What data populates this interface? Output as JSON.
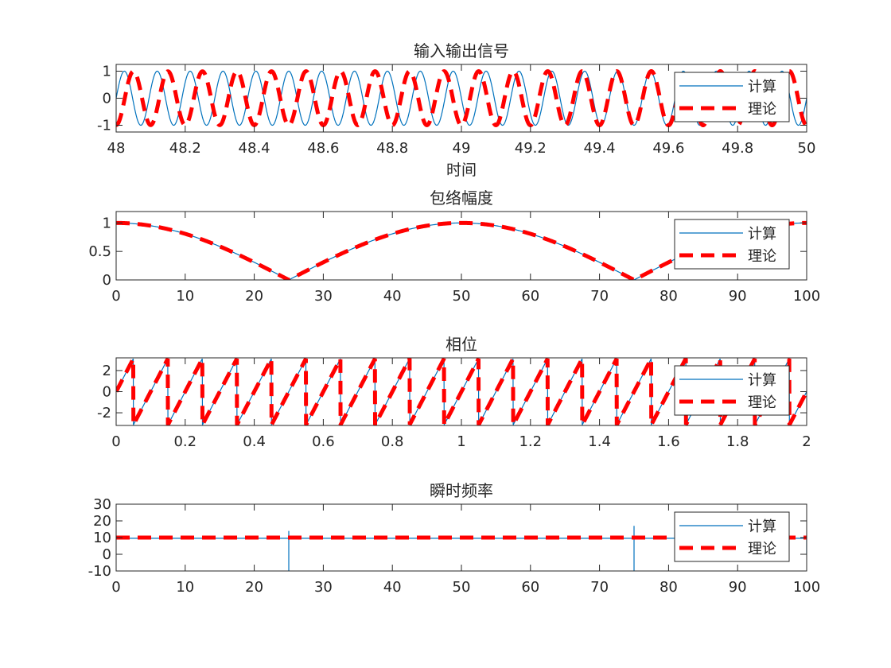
{
  "chart_data": [
    {
      "type": "line",
      "title": "输入输出信号",
      "xlabel": "时间",
      "ylabel": "",
      "xlim": [
        48,
        50
      ],
      "ylim": [
        -1.25,
        1.25
      ],
      "xticks": [
        48,
        48.2,
        48.4,
        48.6,
        48.8,
        49,
        49.2,
        49.4,
        49.6,
        49.8,
        50
      ],
      "xtick_labels": [
        "48",
        "48.2",
        "48.4",
        "48.6",
        "48.8",
        "49",
        "49.2",
        "49.4",
        "49.6",
        "49.8",
        "50"
      ],
      "yticks": [
        -1,
        0,
        1
      ],
      "ytick_labels": [
        "-1",
        "0",
        "1"
      ],
      "grid": false,
      "legend": "top-right",
      "series": [
        {
          "name": "计算",
          "color": "#0072BD",
          "style": "solid",
          "function": "sin(2π·10.5·t)",
          "amplitude": 1,
          "frequency_hz": 10.5
        },
        {
          "name": "理论",
          "color": "#FF0000",
          "style": "dashed",
          "function": "cos(2π·10·t)·cos(2π·0.01·t)",
          "frequency_hz": 10
        }
      ]
    },
    {
      "type": "line",
      "title": "包络幅度",
      "xlabel": "",
      "ylabel": "",
      "xlim": [
        0,
        100
      ],
      "ylim": [
        0,
        1.2
      ],
      "xticks": [
        0,
        10,
        20,
        30,
        40,
        50,
        60,
        70,
        80,
        90,
        100
      ],
      "xtick_labels": [
        "0",
        "10",
        "20",
        "30",
        "40",
        "50",
        "60",
        "70",
        "80",
        "90",
        "100"
      ],
      "yticks": [
        0,
        0.5,
        1
      ],
      "ytick_labels": [
        "0",
        "0.5",
        "1"
      ],
      "grid": false,
      "legend": "top-right",
      "series": [
        {
          "name": "计算",
          "color": "#0072BD",
          "style": "solid",
          "function": "|cos(2π·0.01·t)|"
        },
        {
          "name": "理论",
          "color": "#FF0000",
          "style": "dashed",
          "function": "|cos(2π·0.01·t)|"
        }
      ]
    },
    {
      "type": "line",
      "title": "相位",
      "xlabel": "",
      "ylabel": "",
      "xlim": [
        0,
        2
      ],
      "ylim": [
        -3.2,
        3.2
      ],
      "xticks": [
        0,
        0.2,
        0.4,
        0.6,
        0.8,
        1,
        1.2,
        1.4,
        1.6,
        1.8,
        2
      ],
      "xtick_labels": [
        "0",
        "0.2",
        "0.4",
        "0.6",
        "0.8",
        "1",
        "1.2",
        "1.4",
        "1.6",
        "1.8",
        "2"
      ],
      "yticks": [
        -2,
        0,
        2
      ],
      "ytick_labels": [
        "-2",
        "0",
        "2"
      ],
      "grid": false,
      "legend": "top-right",
      "series": [
        {
          "name": "计算",
          "color": "#0072BD",
          "style": "solid",
          "function": "wrap(2π·10·t + π) − π",
          "frequency_hz": 10
        },
        {
          "name": "理论",
          "color": "#FF0000",
          "style": "dashed",
          "function": "wrap(2π·10·t + π) − π",
          "frequency_hz": 10
        }
      ]
    },
    {
      "type": "line",
      "title": "瞬时频率",
      "xlabel": "",
      "ylabel": "",
      "xlim": [
        0,
        100
      ],
      "ylim": [
        -10,
        30
      ],
      "xticks": [
        0,
        10,
        20,
        30,
        40,
        50,
        60,
        70,
        80,
        90,
        100
      ],
      "xtick_labels": [
        "0",
        "10",
        "20",
        "30",
        "40",
        "50",
        "60",
        "70",
        "80",
        "90",
        "100"
      ],
      "yticks": [
        -10,
        0,
        10,
        20,
        30
      ],
      "ytick_labels": [
        "-10",
        "0",
        "10",
        "20",
        "30"
      ],
      "grid": false,
      "legend": "top-right",
      "series": [
        {
          "name": "计算",
          "color": "#0072BD",
          "style": "solid",
          "constant": 9.6,
          "spikes": [
            {
              "x": 25,
              "min": -10,
              "max": 14
            },
            {
              "x": 75,
              "min": -10,
              "max": 17
            },
            {
              "x": 100,
              "min": 0,
              "max": 10
            }
          ]
        },
        {
          "name": "理论",
          "color": "#FF0000",
          "style": "dashed",
          "constant": 10
        }
      ]
    }
  ]
}
